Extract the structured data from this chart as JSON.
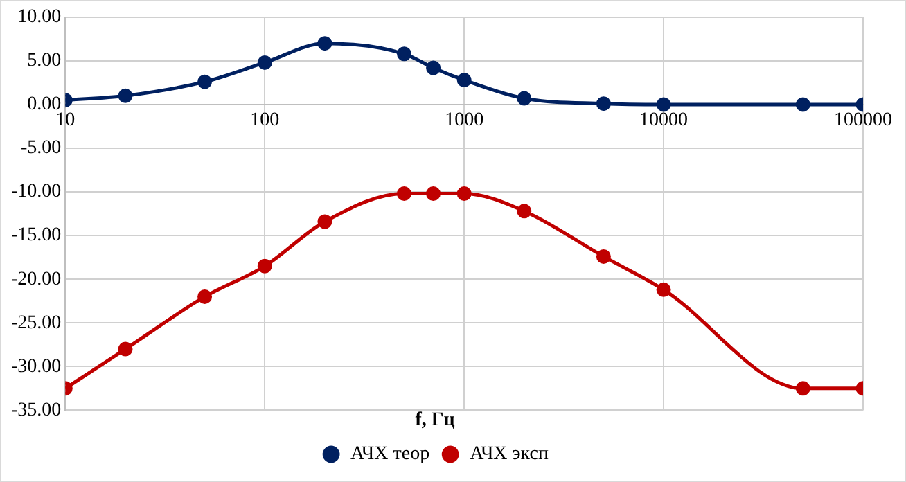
{
  "chart_data": {
    "type": "line",
    "xlabel": "f, Гц",
    "x": [
      10,
      20,
      50,
      100,
      200,
      500,
      700,
      1000,
      2000,
      5000,
      10000,
      50000,
      100000
    ],
    "series": [
      {
        "name": "АЧХ теор",
        "color": "#002060",
        "values": [
          0.5,
          1.0,
          2.6,
          4.8,
          7.0,
          5.8,
          4.2,
          2.8,
          0.7,
          0.1,
          0,
          0,
          0
        ]
      },
      {
        "name": "АЧХ эксп",
        "color": "#c00000",
        "values": [
          -32.5,
          -28.0,
          -22.0,
          -18.5,
          -13.4,
          -10.2,
          -10.2,
          -10.2,
          -12.2,
          -17.4,
          -21.2,
          -32.5,
          -32.5
        ]
      }
    ],
    "log": "x",
    "xlim": [
      10,
      100000
    ],
    "xticks": [
      10,
      100,
      1000,
      10000,
      100000
    ],
    "ylim": [
      -35,
      10
    ],
    "yticks": [
      {
        "value": -35,
        "label": "-35.00"
      },
      {
        "value": -30,
        "label": "-30.00"
      },
      {
        "value": -25,
        "label": "-25.00"
      },
      {
        "value": -20,
        "label": "-20.00"
      },
      {
        "value": -15,
        "label": "-15.00"
      },
      {
        "value": -10,
        "label": "-10.00"
      },
      {
        "value": -5,
        "label": "-5.00"
      },
      {
        "value": 0,
        "label": "0.00"
      },
      {
        "value": 5,
        "label": "5.00"
      },
      {
        "value": 10,
        "label": "10.00"
      }
    ],
    "grid": true,
    "legend": "bottom",
    "marker": "circle",
    "line_style": "solid"
  }
}
